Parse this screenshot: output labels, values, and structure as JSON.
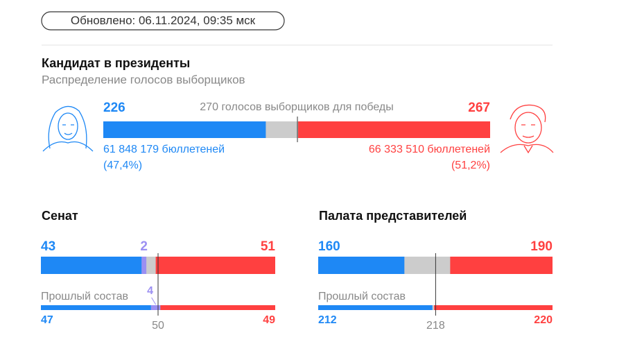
{
  "updated": "Обновлено: 06.11.2024, 09:35 мск",
  "colors": {
    "dem": "#1e88f5",
    "ind": "#9b8ff2",
    "rep": "#ff4040",
    "rest": "#cccccc"
  },
  "president": {
    "title": "Кандидат в президенты",
    "subtitle": "Распределение голосов выборщиков",
    "xlim": [
      0,
      538
    ],
    "threshold": 270,
    "threshold_label": "голосов выборщиков для победы",
    "dem": {
      "votes": 226,
      "ballots": "61 848 179 бюллетеней",
      "share": "(47,4%)"
    },
    "rep": {
      "votes": 267,
      "ballots": "66 333 510 бюллетеней",
      "share": "(51,2%)"
    }
  },
  "senate": {
    "title": "Сенат",
    "xlim": [
      0,
      100
    ],
    "majority": 50,
    "dem": 43,
    "ind": 2,
    "rep": 51,
    "previous_label": "Прошлый состав",
    "prev": {
      "dem": 47,
      "ind": 4,
      "rep": 49
    }
  },
  "house": {
    "title": "Палата представителей",
    "xlim": [
      0,
      435
    ],
    "majority": 218,
    "dem": 160,
    "rep": 190,
    "previous_label": "Прошлый состав",
    "prev": {
      "dem": 212,
      "rep": 220
    }
  }
}
